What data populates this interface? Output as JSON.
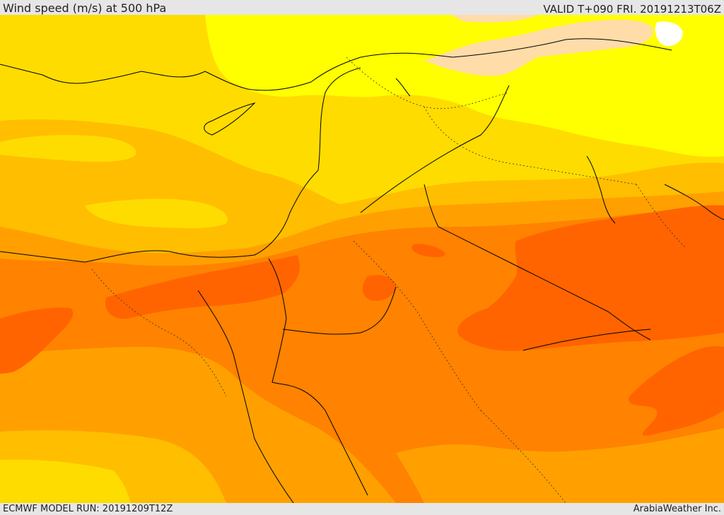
{
  "header": {
    "title": "Wind speed (m/s) at 500 hPa",
    "valid": "VALID T+090 FRI. 20191213T06Z"
  },
  "footer": {
    "model_run": "ECMWF MODEL RUN: 20191209T12Z",
    "credit": "ArabiaWeather Inc."
  },
  "map": {
    "variable": "wind speed at 500 hPa",
    "colors": {
      "white": "#ffffff",
      "yellow": "#ffff00",
      "gold": "#ffdc00",
      "amber": "#ffbe00",
      "orange": "#ffa000",
      "dark_orange": "#ff8200",
      "red_orange": "#ff6400",
      "peach": "#ffdca8",
      "coastline": "#000000"
    }
  }
}
